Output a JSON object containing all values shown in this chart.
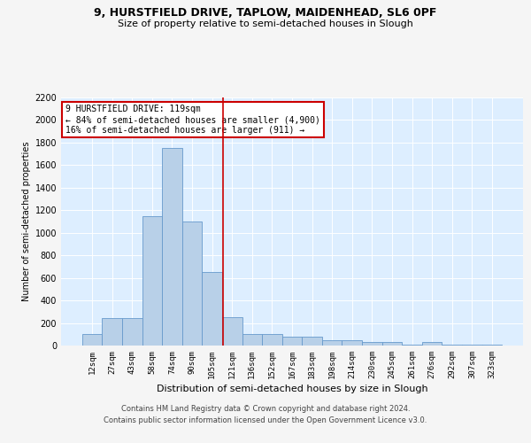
{
  "title_line1": "9, HURSTFIELD DRIVE, TAPLOW, MAIDENHEAD, SL6 0PF",
  "title_line2": "Size of property relative to semi-detached houses in Slough",
  "xlabel": "Distribution of semi-detached houses by size in Slough",
  "ylabel": "Number of semi-detached properties",
  "categories": [
    "12sqm",
    "27sqm",
    "43sqm",
    "58sqm",
    "74sqm",
    "90sqm",
    "105sqm",
    "121sqm",
    "136sqm",
    "152sqm",
    "167sqm",
    "183sqm",
    "198sqm",
    "214sqm",
    "230sqm",
    "245sqm",
    "261sqm",
    "276sqm",
    "292sqm",
    "307sqm",
    "323sqm"
  ],
  "values": [
    100,
    240,
    240,
    1150,
    1750,
    1100,
    650,
    250,
    100,
    100,
    75,
    75,
    50,
    50,
    30,
    30,
    5,
    30,
    5,
    5,
    5
  ],
  "bar_color": "#b8d0e8",
  "bar_edge_color": "#6699cc",
  "background_color": "#ddeeff",
  "grid_color": "#ffffff",
  "red_line_color": "#cc0000",
  "red_line_x": 6.55,
  "annotation_title": "9 HURSTFIELD DRIVE: 119sqm",
  "annotation_line1": "← 84% of semi-detached houses are smaller (4,900)",
  "annotation_line2": "16% of semi-detached houses are larger (911) →",
  "annotation_box_color": "#ffffff",
  "annotation_box_edge_color": "#cc0000",
  "ylim": [
    0,
    2200
  ],
  "yticks": [
    0,
    200,
    400,
    600,
    800,
    1000,
    1200,
    1400,
    1600,
    1800,
    2000,
    2200
  ],
  "footer_line1": "Contains HM Land Registry data © Crown copyright and database right 2024.",
  "footer_line2": "Contains public sector information licensed under the Open Government Licence v3.0."
}
